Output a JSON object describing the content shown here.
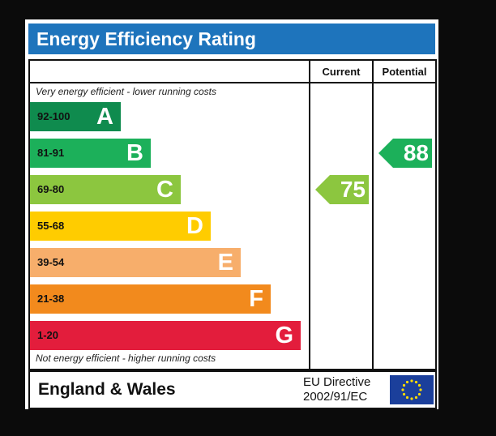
{
  "title": "Energy Efficiency Rating",
  "columns": {
    "current": "Current",
    "potential": "Potential"
  },
  "notes": {
    "top": "Very energy efficient - lower running costs",
    "bottom": "Not energy efficient - higher running costs"
  },
  "footer": {
    "country": "England & Wales",
    "directive_line1": "EU Directive",
    "directive_line2": "2002/91/EC"
  },
  "icons": {
    "flag": "eu-flag-icon"
  },
  "chart_data": {
    "type": "bar",
    "categories": [
      "A",
      "B",
      "C",
      "D",
      "E",
      "F",
      "G"
    ],
    "ranges": [
      "92-100",
      "81-91",
      "69-80",
      "55-68",
      "39-54",
      "21-38",
      "1-20"
    ],
    "colors": [
      "#0f8b4e",
      "#1cb05a",
      "#8cc63f",
      "#ffcc00",
      "#f7ae6b",
      "#f28a1d",
      "#e31d3c"
    ],
    "current": {
      "label": "Current",
      "value": 75,
      "band": "C"
    },
    "potential": {
      "label": "Potential",
      "value": 88,
      "band": "B"
    }
  }
}
